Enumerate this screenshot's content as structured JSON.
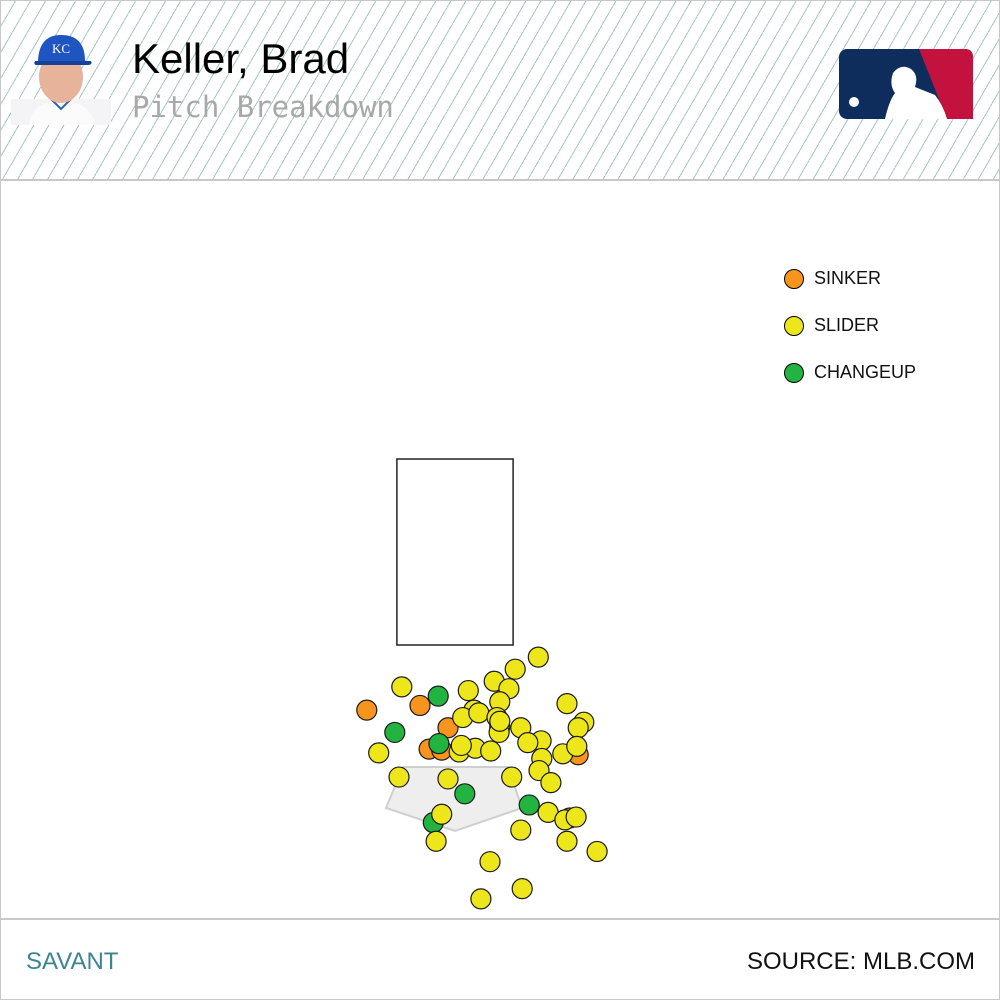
{
  "header": {
    "player_name": "Keller, Brad",
    "subtitle": "Pitch Breakdown",
    "headshot_icon": "player-headshot",
    "logo_icon": "mlb-logo"
  },
  "footer": {
    "left": "SAVANT",
    "right": "SOURCE: MLB.COM"
  },
  "chart_data": {
    "type": "scatter",
    "title": "",
    "xlabel": "",
    "ylabel": "",
    "strike_zone": {
      "x": [
        -0.83,
        0.83
      ],
      "y": [
        1.5,
        3.5
      ]
    },
    "legend_placement": "top-right",
    "colors": {
      "SINKER": "#f7941d",
      "SLIDER": "#ede61b",
      "CHANGEUP": "#23b340"
    },
    "series": [
      {
        "name": "SINKER",
        "points": [
          [
            -1.26,
            0.8
          ],
          [
            -0.5,
            0.85
          ],
          [
            -0.1,
            0.61
          ],
          [
            -0.37,
            0.38
          ],
          [
            -0.19,
            0.37
          ],
          [
            1.76,
            0.32
          ],
          [
            1.64,
            -0.36
          ]
        ]
      },
      {
        "name": "CHANGEUP",
        "points": [
          [
            -0.24,
            0.95
          ],
          [
            -0.86,
            0.56
          ],
          [
            -0.23,
            0.44
          ],
          [
            0.14,
            -0.1
          ],
          [
            1.06,
            -0.22
          ],
          [
            -0.31,
            -0.41
          ]
        ]
      },
      {
        "name": "SLIDER",
        "points": [
          [
            -0.76,
            1.05
          ],
          [
            1.19,
            1.37
          ],
          [
            0.86,
            1.24
          ],
          [
            0.56,
            1.11
          ],
          [
            0.77,
            1.03
          ],
          [
            0.19,
            1.01
          ],
          [
            0.64,
            0.89
          ],
          [
            0.27,
            0.8
          ],
          [
            0.11,
            0.72
          ],
          [
            0.34,
            0.77
          ],
          [
            1.6,
            0.87
          ],
          [
            1.84,
            0.67
          ],
          [
            1.76,
            0.61
          ],
          [
            0.6,
            0.72
          ],
          [
            0.64,
            0.62
          ],
          [
            0.63,
            0.56
          ],
          [
            0.94,
            0.61
          ],
          [
            1.23,
            0.47
          ],
          [
            1.04,
            0.45
          ],
          [
            -1.09,
            0.34
          ],
          [
            0.06,
            0.35
          ],
          [
            0.29,
            0.39
          ],
          [
            0.51,
            0.36
          ],
          [
            0.09,
            0.42
          ],
          [
            1.54,
            0.33
          ],
          [
            1.74,
            0.41
          ],
          [
            1.24,
            0.28
          ],
          [
            1.2,
            0.15
          ],
          [
            1.37,
            0.02
          ],
          [
            0.81,
            0.08
          ],
          [
            -0.8,
            0.08
          ],
          [
            -0.1,
            0.06
          ],
          [
            1.33,
            -0.3
          ],
          [
            -0.19,
            -0.32
          ],
          [
            1.57,
            -0.38
          ],
          [
            1.73,
            -0.35
          ],
          [
            0.94,
            -0.49
          ],
          [
            1.6,
            -0.61
          ],
          [
            -0.27,
            -0.61
          ],
          [
            2.03,
            -0.72
          ],
          [
            0.5,
            -0.83
          ],
          [
            0.96,
            -1.12
          ],
          [
            0.37,
            -1.23
          ],
          [
            0.64,
            0.68
          ]
        ]
      }
    ]
  }
}
